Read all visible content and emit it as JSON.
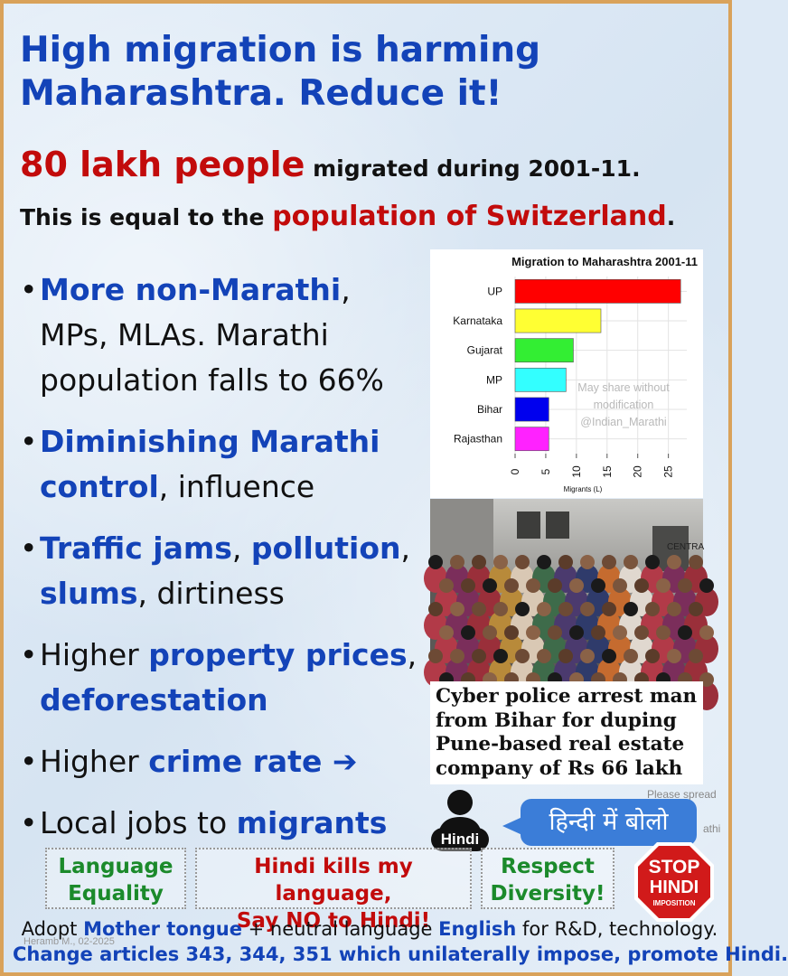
{
  "title": {
    "line1": "High migration is harming",
    "line2": "Maharashtra. Reduce it!"
  },
  "headline": {
    "big": "80 lakh people",
    "rest": " migrated during 2001-11."
  },
  "equal": {
    "prefix": "This is equal to the ",
    "highlight": "population of Switzerland",
    "suffix": "."
  },
  "bullets": {
    "b1": {
      "hl": "More non-Marathi",
      "t1": ",",
      "t2": "MPs, MLAs. Marathi",
      "t3": "population falls to 66%"
    },
    "b2": {
      "hl1": "Diminishing Marathi",
      "hl2": "control",
      "t": ", influence"
    },
    "b3": {
      "hl1": "Traffic jams",
      "t1": ", ",
      "hl2": "pollution",
      "t2": ",",
      "hl3": "slums",
      "t3": ", dirtiness"
    },
    "b4": {
      "t1": "Higher ",
      "hl1": "property prices",
      "t2": ",",
      "hl2": "deforestation"
    },
    "b5": {
      "t1": "Higher ",
      "hl1": "crime rate",
      "arrow": " ➔"
    },
    "b6": {
      "t1": "Local jobs to ",
      "hl1": "migrants"
    },
    "dot": "•"
  },
  "chart_data": {
    "type": "bar",
    "orientation": "horizontal",
    "title": "Migration to Maharashtra 2001-11",
    "categories": [
      "UP",
      "Karnataka",
      "Gujarat",
      "MP",
      "Bihar",
      "Rajasthan"
    ],
    "values": [
      27,
      14,
      9.5,
      8.3,
      5.5,
      5.5
    ],
    "colors": [
      "#ff0000",
      "#ffff33",
      "#33ee33",
      "#33ffff",
      "#0000ee",
      "#ff22ff"
    ],
    "xlabel": "Migrants (L)",
    "ylabel": "",
    "xlim": [
      0,
      28
    ],
    "xticks": [
      0,
      5,
      10,
      15,
      20,
      25
    ],
    "grid": true,
    "watermark": [
      "May share without",
      "modification",
      "@Indian_Marathi"
    ]
  },
  "caption": {
    "l1": "Cyber police arrest man",
    "l2": "from Bihar for duping",
    "l3": "Pune-based real estate",
    "l4": "company of Rs 66 lakh"
  },
  "photo": {
    "train_text": "CENTRA"
  },
  "please_spread": "Please spread",
  "athi": "athi",
  "person_tag": "Hindi",
  "bubble_text": "हिन्दी में बोलो",
  "boxes": {
    "b1": [
      "Language",
      "Equality"
    ],
    "b2": [
      "Hindi kills my language,",
      "Say NO to Hindi!"
    ],
    "b3": [
      "Respect",
      "Diversity!"
    ]
  },
  "stop_sign": {
    "stop": "STOP",
    "hindi": "HINDI",
    "imposition": "IMPOSITION"
  },
  "footer": {
    "l1a": "Adopt ",
    "l1b": "Mother tongue",
    "l1c": " + neutral language ",
    "l1d": "English",
    "l1e": " for R&D, technology.",
    "l2": "Change articles 343, 344, 351 which unilaterally impose, promote Hindi."
  },
  "signature": "Heramb M., 02-2025"
}
